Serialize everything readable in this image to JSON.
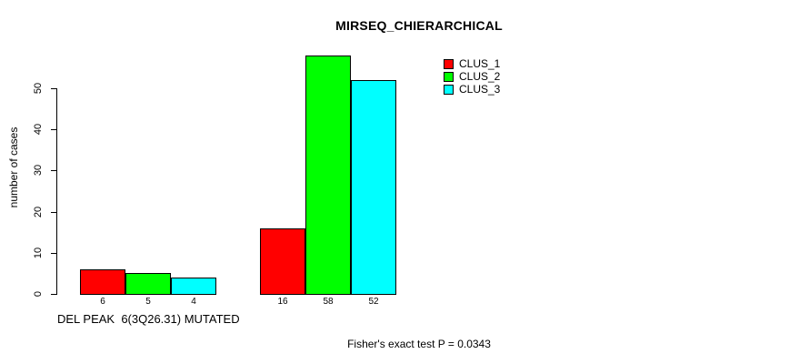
{
  "figure": {
    "background": "#ffffff",
    "text_color": "#000000"
  },
  "chart_data": {
    "type": "bar",
    "title": "MIRSEQ_CHIERARCHICAL",
    "ylabel": "number of cases",
    "xlabel": "DEL PEAK  6(3Q26.31) MUTATED",
    "footnote": "Fisher's exact test P = 0.0343",
    "ylim": [
      0,
      58
    ],
    "yticks": [
      0,
      10,
      20,
      30,
      40,
      50
    ],
    "grid": false,
    "legend_position": "top-right",
    "num_groups": 2,
    "series": [
      {
        "name": "CLUS_1",
        "color": "#ff0000",
        "values": [
          6,
          16
        ]
      },
      {
        "name": "CLUS_2",
        "color": "#00ff00",
        "values": [
          5,
          58
        ]
      },
      {
        "name": "CLUS_3",
        "color": "#00ffff",
        "values": [
          4,
          52
        ]
      }
    ],
    "bar_value_labels": [
      [
        "6",
        "5",
        "4"
      ],
      [
        "16",
        "58",
        "52"
      ]
    ]
  }
}
